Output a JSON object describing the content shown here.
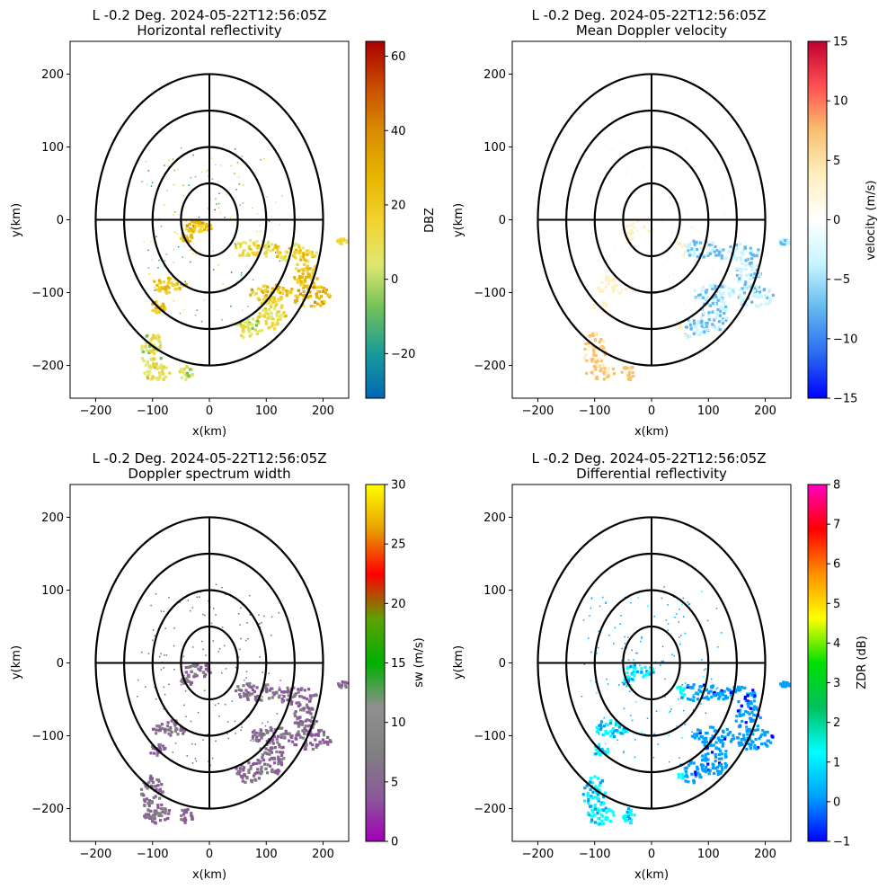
{
  "figure": {
    "panels": [
      {
        "id": "reflectivity",
        "title_line1": "L -0.2 Deg. 2024-05-22T12:56:05Z",
        "title_line2": "Horizontal reflectivity",
        "xlabel": "x(km)",
        "ylabel": "y(km)",
        "colorbar": {
          "label": "DBZ",
          "range": [
            -32,
            64
          ],
          "ticks": [
            -20,
            0,
            20,
            40,
            60
          ],
          "colormap": [
            "#0068b6",
            "#1a9a9a",
            "#6fc05a",
            "#dfe870",
            "#f2d22e",
            "#e6b400",
            "#d98c00",
            "#c84b00",
            "#aa0000"
          ]
        }
      },
      {
        "id": "velocity",
        "title_line1": "L -0.2 Deg. 2024-05-22T12:56:05Z",
        "title_line2": "Mean Doppler velocity",
        "xlabel": "x(km)",
        "ylabel": "y(km)",
        "colorbar": {
          "label": "velocity (m/s)",
          "range": [
            -15,
            15
          ],
          "ticks": [
            -15,
            -10,
            -5,
            0,
            5,
            10,
            15
          ],
          "colormap": [
            "#0000ff",
            "#2a6cf0",
            "#60b8f0",
            "#c6f4ff",
            "#ffffff",
            "#fff0c0",
            "#f8c070",
            "#ff5050",
            "#c00030"
          ]
        }
      },
      {
        "id": "spectrum_width",
        "title_line1": "L -0.2 Deg. 2024-05-22T12:56:05Z",
        "title_line2": "Doppler spectrum width",
        "xlabel": "x(km)",
        "ylabel": "y(km)",
        "colorbar": {
          "label": "sw (m/s)",
          "range": [
            0,
            30
          ],
          "ticks": [
            0,
            5,
            10,
            15,
            20,
            25,
            30
          ],
          "colormap": [
            "#a000b4",
            "#8a5a9a",
            "#808080",
            "#909090",
            "#00b000",
            "#60a000",
            "#ff0000",
            "#e8a000",
            "#ffff00"
          ]
        }
      },
      {
        "id": "zdr",
        "title_line1": "L -0.2 Deg. 2024-05-22T12:56:05Z",
        "title_line2": "Differential reflectivity",
        "xlabel": "x(km)",
        "ylabel": "y(km)",
        "colorbar": {
          "label": "ZDR (dB)",
          "range": [
            -1,
            8
          ],
          "ticks": [
            -1,
            0,
            1,
            2,
            3,
            4,
            5,
            6,
            7,
            8
          ],
          "colormap": [
            "#0000ff",
            "#00a0ff",
            "#00ffff",
            "#00c060",
            "#00e000",
            "#ffff00",
            "#ff9000",
            "#ff0000",
            "#ff00c0"
          ]
        }
      }
    ]
  },
  "chart_data": {
    "type": "heatmap",
    "xlim": [
      -245,
      245
    ],
    "ylim": [
      -245,
      245
    ],
    "xticks": [
      -200,
      -100,
      0,
      100,
      200
    ],
    "yticks": [
      -200,
      -100,
      0,
      100,
      200
    ],
    "range_rings_km": [
      50,
      100,
      150,
      200
    ],
    "cross_lines_half_length_km": 200,
    "echo_regions": [
      {
        "cx": 80,
        "cy": -40,
        "rx": 40,
        "ry": 12,
        "level": 0.45
      },
      {
        "cx": 150,
        "cy": -45,
        "rx": 40,
        "ry": 12,
        "level": 0.5
      },
      {
        "cx": 170,
        "cy": -75,
        "rx": 22,
        "ry": 20,
        "level": 0.55
      },
      {
        "cx": 180,
        "cy": -105,
        "rx": 35,
        "ry": 15,
        "level": 0.6
      },
      {
        "cx": 110,
        "cy": -100,
        "rx": 40,
        "ry": 12,
        "level": 0.55
      },
      {
        "cx": 110,
        "cy": -130,
        "rx": 25,
        "ry": 25,
        "level": 0.45
      },
      {
        "cx": 70,
        "cy": -150,
        "rx": 25,
        "ry": 15,
        "level": 0.4
      },
      {
        "cx": -20,
        "cy": -10,
        "rx": 25,
        "ry": 10,
        "level": 0.6
      },
      {
        "cx": -40,
        "cy": -25,
        "rx": 10,
        "ry": 8,
        "level": 0.65
      },
      {
        "cx": -70,
        "cy": -90,
        "rx": 30,
        "ry": 12,
        "level": 0.55
      },
      {
        "cx": -90,
        "cy": -120,
        "rx": 15,
        "ry": 8,
        "level": 0.6
      },
      {
        "cx": -100,
        "cy": -180,
        "rx": 20,
        "ry": 25,
        "level": 0.4
      },
      {
        "cx": -90,
        "cy": -210,
        "rx": 25,
        "ry": 12,
        "level": 0.45
      },
      {
        "cx": -40,
        "cy": -210,
        "rx": 12,
        "ry": 10,
        "level": 0.4
      },
      {
        "cx": 235,
        "cy": -30,
        "rx": 10,
        "ry": 4,
        "level": 0.45
      }
    ]
  }
}
